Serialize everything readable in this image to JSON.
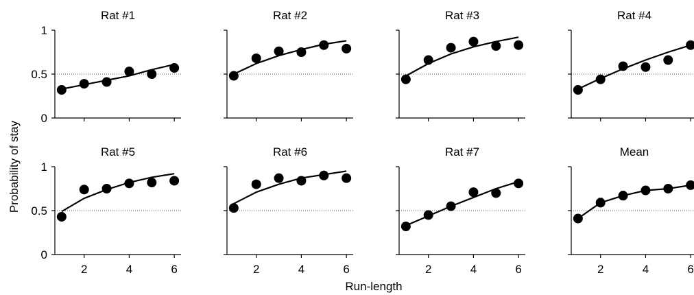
{
  "figure": {
    "ylabel": "Probability of stay",
    "xlabel": "Run-length"
  },
  "chart_data": [
    {
      "type": "scatter",
      "title": "Rat #1",
      "x": [
        1,
        2,
        3,
        4,
        5,
        6
      ],
      "series": [
        {
          "kind": "points",
          "values": [
            0.32,
            0.39,
            0.41,
            0.53,
            0.5,
            0.57
          ]
        },
        {
          "kind": "fit",
          "values": [
            0.33,
            0.38,
            0.43,
            0.48,
            0.55,
            0.61
          ]
        }
      ],
      "ylim": [
        0,
        1
      ],
      "xlim": [
        0.7,
        6.3
      ],
      "xticks": [
        "2",
        "4",
        "6"
      ],
      "yticks": [
        "0",
        "0.5",
        "1"
      ],
      "reference_line": 0.5
    },
    {
      "type": "scatter",
      "title": "Rat #2",
      "x": [
        1,
        2,
        3,
        4,
        5,
        6
      ],
      "series": [
        {
          "kind": "points",
          "values": [
            0.48,
            0.68,
            0.76,
            0.75,
            0.83,
            0.79
          ]
        },
        {
          "kind": "fit",
          "values": [
            0.5,
            0.62,
            0.71,
            0.78,
            0.84,
            0.88
          ]
        }
      ],
      "ylim": [
        0,
        1
      ],
      "xlim": [
        0.7,
        6.3
      ],
      "xticks": [
        "2",
        "4",
        "6"
      ],
      "yticks": [
        "0",
        "0.5",
        "1"
      ],
      "reference_line": 0.5
    },
    {
      "type": "scatter",
      "title": "Rat #3",
      "x": [
        1,
        2,
        3,
        4,
        5,
        6
      ],
      "series": [
        {
          "kind": "points",
          "values": [
            0.44,
            0.66,
            0.8,
            0.87,
            0.82,
            0.83
          ]
        },
        {
          "kind": "fit",
          "values": [
            0.48,
            0.62,
            0.73,
            0.81,
            0.87,
            0.92
          ]
        }
      ],
      "ylim": [
        0,
        1
      ],
      "xlim": [
        0.7,
        6.3
      ],
      "xticks": [
        "2",
        "4",
        "6"
      ],
      "yticks": [
        "0",
        "0.5",
        "1"
      ],
      "reference_line": 0.5
    },
    {
      "type": "scatter",
      "title": "Rat #4",
      "x": [
        1,
        2,
        3,
        4,
        5,
        6
      ],
      "series": [
        {
          "kind": "points",
          "values": [
            0.32,
            0.44,
            0.59,
            0.58,
            0.66,
            0.83
          ]
        },
        {
          "kind": "fit",
          "values": [
            0.33,
            0.45,
            0.56,
            0.66,
            0.75,
            0.83
          ]
        }
      ],
      "ylim": [
        0,
        1
      ],
      "xlim": [
        0.7,
        6.3
      ],
      "xticks": [
        "2",
        "4",
        "6"
      ],
      "yticks": [
        "0",
        "0.5",
        "1"
      ],
      "reference_line": 0.5
    },
    {
      "type": "scatter",
      "title": "Rat #5",
      "x": [
        1,
        2,
        3,
        4,
        5,
        6
      ],
      "series": [
        {
          "kind": "points",
          "values": [
            0.43,
            0.74,
            0.75,
            0.81,
            0.82,
            0.84
          ]
        },
        {
          "kind": "fit",
          "values": [
            0.49,
            0.64,
            0.74,
            0.82,
            0.88,
            0.92
          ]
        }
      ],
      "ylim": [
        0,
        1
      ],
      "xlim": [
        0.7,
        6.3
      ],
      "xticks": [
        "2",
        "4",
        "6"
      ],
      "yticks": [
        "0",
        "0.5",
        "1"
      ],
      "reference_line": 0.5
    },
    {
      "type": "scatter",
      "title": "Rat #6",
      "x": [
        1,
        2,
        3,
        4,
        5,
        6
      ],
      "series": [
        {
          "kind": "points",
          "values": [
            0.53,
            0.8,
            0.87,
            0.84,
            0.9,
            0.87
          ]
        },
        {
          "kind": "fit",
          "values": [
            0.58,
            0.71,
            0.8,
            0.87,
            0.91,
            0.95
          ]
        }
      ],
      "ylim": [
        0,
        1
      ],
      "xlim": [
        0.7,
        6.3
      ],
      "xticks": [
        "2",
        "4",
        "6"
      ],
      "yticks": [
        "0",
        "0.5",
        "1"
      ],
      "reference_line": 0.5
    },
    {
      "type": "scatter",
      "title": "Rat #7",
      "x": [
        1,
        2,
        3,
        4,
        5,
        6
      ],
      "series": [
        {
          "kind": "points",
          "values": [
            0.32,
            0.45,
            0.55,
            0.71,
            0.7,
            0.81
          ]
        },
        {
          "kind": "fit",
          "values": [
            0.33,
            0.44,
            0.55,
            0.65,
            0.75,
            0.83
          ]
        }
      ],
      "ylim": [
        0,
        1
      ],
      "xlim": [
        0.7,
        6.3
      ],
      "xticks": [
        "2",
        "4",
        "6"
      ],
      "yticks": [
        "0",
        "0.5",
        "1"
      ],
      "reference_line": 0.5
    },
    {
      "type": "scatter",
      "title": "Mean",
      "x": [
        1,
        2,
        3,
        4,
        5,
        6
      ],
      "series": [
        {
          "kind": "points",
          "values": [
            0.41,
            0.59,
            0.67,
            0.73,
            0.75,
            0.79
          ],
          "error": [
            0.02,
            0.05,
            0.05,
            0.03,
            0.03,
            0.03
          ]
        },
        {
          "kind": "line",
          "values": [
            0.41,
            0.59,
            0.67,
            0.73,
            0.75,
            0.79
          ]
        }
      ],
      "ylim": [
        0,
        1
      ],
      "xlim": [
        0.7,
        6.3
      ],
      "xticks": [
        "2",
        "4",
        "6"
      ],
      "yticks": [
        "0",
        "0.5",
        "1"
      ],
      "reference_line": 0.5
    }
  ]
}
